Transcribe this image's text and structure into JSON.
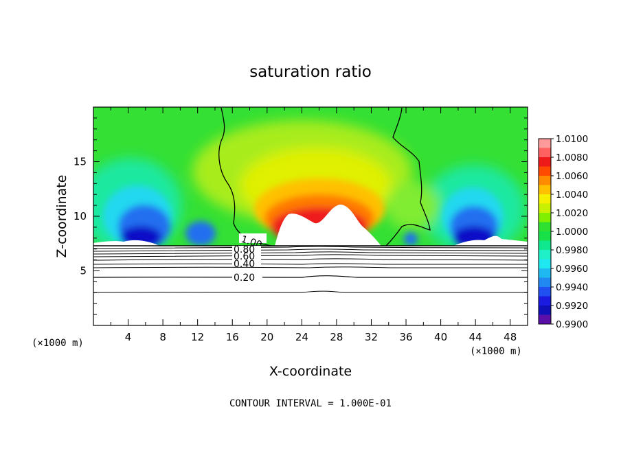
{
  "chart_data": {
    "type": "heatmap",
    "title": "saturation ratio",
    "xlabel": "X-coordinate",
    "ylabel": "Z-coordinate",
    "x_unit": "(×1000 m)",
    "z_unit": "(×1000 m)",
    "xlim": [
      0,
      50
    ],
    "ylim": [
      0,
      20
    ],
    "x_ticks": [
      4,
      8,
      12,
      16,
      20,
      24,
      28,
      32,
      36,
      40,
      44,
      48
    ],
    "y_ticks": [
      5,
      10,
      15
    ],
    "footer": "CONTOUR INTERVAL = 1.000E-01",
    "colorbar": {
      "levels": [
        "1.0100",
        "1.0080",
        "1.0060",
        "1.0040",
        "1.0020",
        "1.0000",
        "0.9980",
        "0.9960",
        "0.9940",
        "0.9920",
        "0.9900"
      ],
      "colors": [
        "#ff9a9a",
        "#ff6060",
        "#ee1a1a",
        "#ff4a00",
        "#ff8c00",
        "#ffc000",
        "#f4f000",
        "#c8f000",
        "#80f000",
        "#30e030",
        "#18e048",
        "#10e890",
        "#20f0c8",
        "#20e8f0",
        "#20b8f0",
        "#2088f0",
        "#2050f0",
        "#1a1ae0",
        "#1010b8",
        "#5a10a8"
      ]
    },
    "contour_labels": [
      "1.00",
      "0.80",
      "0.60",
      "0.40",
      "0.20"
    ]
  }
}
